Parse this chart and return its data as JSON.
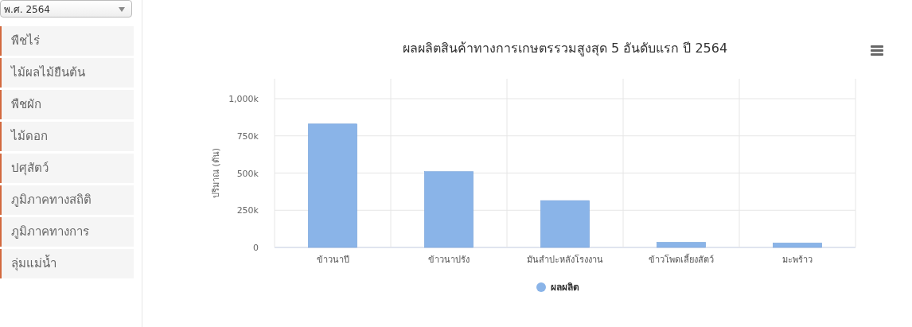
{
  "chart_data": [
    {
      "type": "other",
      "annotations": [
        "พ.ศ. 2564",
        "พืชไร่",
        "ไม้ผลไม้ยืนต้น",
        "พืชผัก",
        "ไม้ดอก",
        "ปศุสัตว์",
        "ภูมิภาคทางสถิติ",
        "ภูมิภาคทางการ",
        "ลุ่มแม่น้ำ"
      ]
    },
    {
      "type": "bar",
      "title": "ผลผลิตสินค้าทางการเกษตรรวมสูงสุด 5 อันดับแรก ปี 2564",
      "ylabel": "ปริมาณ (ตัน)",
      "categories": [
        "ข้าวนาปี",
        "ข้าวนาปรัง",
        "มันสำปะหลังโรงงาน",
        "ข้าวโพดเลี้ยงสัตว์",
        "มะพร้าว"
      ],
      "series": [
        {
          "name": "ผลผลิต",
          "color": "#8ab4e8",
          "values": [
            830000,
            510000,
            315000,
            35000,
            30000
          ]
        }
      ],
      "ylim": [
        0,
        1000000
      ],
      "yticks": [
        0,
        {
          "value": 250000,
          "label": "250k"
        },
        {
          "value": 500000,
          "label": "500k"
        },
        {
          "value": 750000,
          "label": "750k"
        },
        {
          "value": 1000000,
          "label": "1,000k"
        }
      ],
      "grid": true,
      "legend": "bottom"
    }
  ]
}
